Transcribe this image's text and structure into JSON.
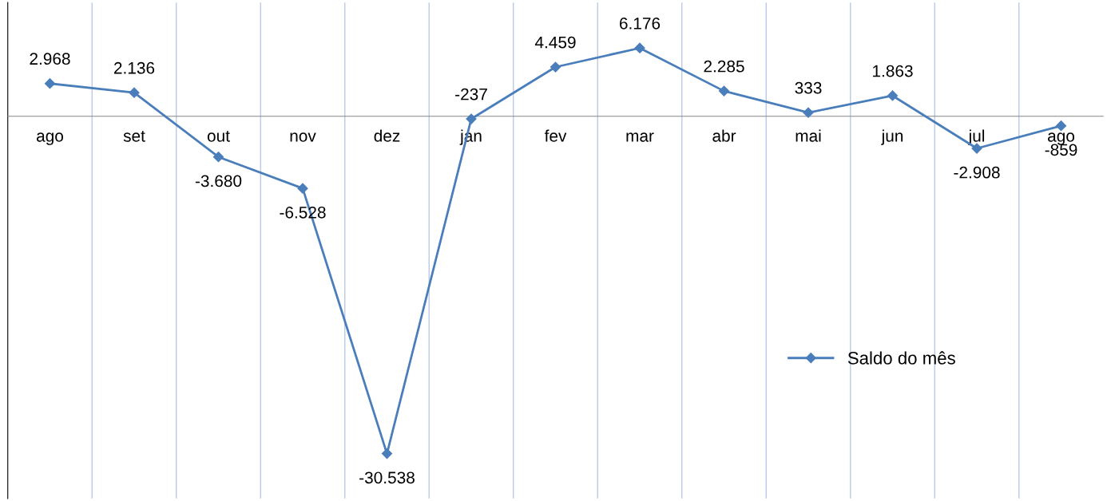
{
  "chart_data": {
    "type": "line",
    "categories": [
      "ago",
      "set",
      "out",
      "nov",
      "dez",
      "jan",
      "fev",
      "mar",
      "abr",
      "mai",
      "jun",
      "jul",
      "ago"
    ],
    "series": [
      {
        "name": "Saldo do mês",
        "color": "#4a7ebb",
        "values": [
          2968,
          2136,
          -3680,
          -6528,
          -30538,
          -237,
          4459,
          6176,
          2285,
          333,
          1863,
          -2908,
          -859
        ],
        "value_labels": [
          "2.968",
          "2.136",
          "-3.680",
          "-6.528",
          "-30.538",
          "-237",
          "4.459",
          "6.176",
          "2.285",
          "333",
          "1.863",
          "-2.908",
          "-859"
        ]
      }
    ],
    "ylim": [
      -34600,
      10300
    ],
    "tick_labels": "x",
    "grid": "x",
    "legend": "right",
    "marker": "diamond",
    "line_style": "solid"
  }
}
